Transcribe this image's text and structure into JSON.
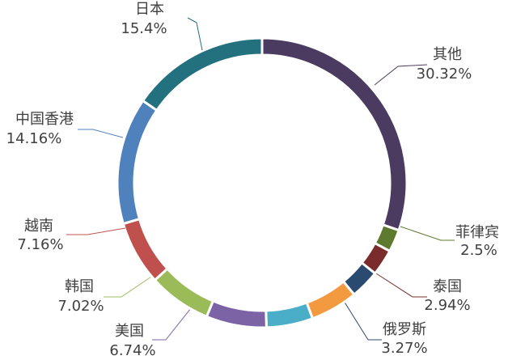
{
  "chart_data": {
    "type": "donut",
    "categories": [
      "其他",
      "菲律宾",
      "泰国",
      "俄罗斯",
      null,
      null,
      "美国",
      "韩国",
      "越南",
      "中国香港",
      "日本"
    ],
    "values": [
      30.32,
      2.5,
      2.94,
      3.27,
      5.3,
      5.19,
      6.74,
      7.02,
      7.16,
      14.16,
      15.4
    ],
    "value_labels": [
      "30.32%",
      "2.5%",
      "2.94%",
      "3.27%",
      null,
      null,
      "6.74%",
      "7.02%",
      "7.16%",
      "14.16%",
      "15.4%"
    ],
    "colors": [
      "#4b3b61",
      "#5e7a2e",
      "#7a2b2b",
      "#2b4a70",
      "#f39a40",
      "#4aaec8",
      "#7c63a6",
      "#9bbb59",
      "#c0504d",
      "#4f81bd",
      "#23707f"
    ]
  }
}
